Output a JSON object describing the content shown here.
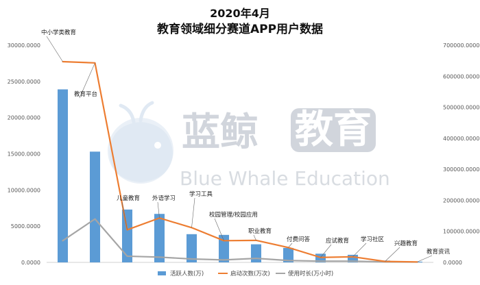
{
  "chart_data": {
    "type": "bar",
    "title": "2020年4月",
    "subtitle": "教育领域细分赛道APP用户数据",
    "categories": [
      "中小学类教育",
      "教育平台",
      "儿童教育",
      "外语学习",
      "学习工具",
      "校园管理/校园应用",
      "职业教育",
      "付费问答",
      "应试教育",
      "学习社区",
      "兴趣教育",
      "教育资讯"
    ],
    "y_left": {
      "min": 0,
      "max": 30000,
      "step": 5000,
      "tick_labels": [
        "0.0000",
        "5000.0000",
        "10000.0000",
        "15000.0000",
        "20000.0000",
        "25000.0000",
        "30000.0000"
      ]
    },
    "y_right": {
      "min": 0,
      "max": 700000,
      "step": 100000,
      "tick_labels": [
        "0.0000",
        "100000.0000",
        "200000.0000",
        "300000.0000",
        "400000.0000",
        "500000.0000",
        "600000.0000",
        "700000.0000"
      ]
    },
    "series": [
      {
        "name": "活跃人数(万)",
        "type": "bar",
        "axis": "left",
        "color": "#5b9bd5",
        "values": [
          23900,
          15300,
          7300,
          6700,
          3900,
          3800,
          2500,
          2000,
          1200,
          1050,
          250,
          100
        ]
      },
      {
        "name": "启动次数(万次)",
        "type": "line",
        "axis": "right",
        "color": "#ed7d31",
        "values": [
          647000,
          643000,
          105000,
          143000,
          112000,
          70000,
          71000,
          48000,
          16000,
          18000,
          3000,
          1500
        ]
      },
      {
        "name": "使用时长(万小时)",
        "type": "line",
        "axis": "right",
        "color": "#a5a5a5",
        "values": [
          70000,
          140000,
          20000,
          17000,
          11000,
          8000,
          13000,
          6000,
          4000,
          4000,
          1500,
          1000
        ]
      }
    ],
    "grid": false,
    "legend_position": "bottom"
  },
  "watermark": {
    "text_cn": "蓝鲸教育",
    "text_cn_part1": "蓝鲸",
    "text_cn_part2": "教育",
    "text_en": "Blue Whale Education",
    "logo_icon": "whale-logo-icon"
  }
}
